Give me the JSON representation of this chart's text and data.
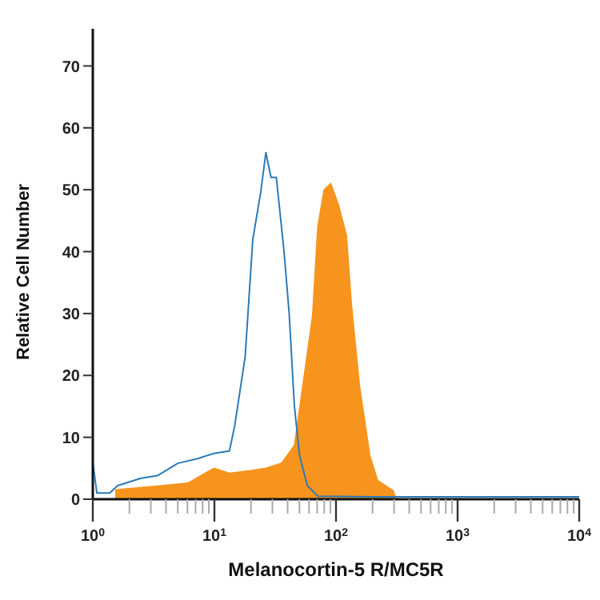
{
  "chart_data": {
    "type": "area",
    "xlabel": "Melanocortin-5 R/MC5R",
    "ylabel": "Relative Cell Number",
    "log": "x",
    "xlim": [
      1,
      10000
    ],
    "ylim": [
      0,
      76
    ],
    "yticks": [
      0,
      10,
      20,
      30,
      40,
      50,
      60,
      70
    ],
    "xticks": [
      {
        "value": 1,
        "label": "10$^{0}$"
      },
      {
        "value": 2,
        "label": null
      },
      {
        "value": 3,
        "label": null
      },
      {
        "value": 4,
        "label": null
      },
      {
        "value": 5,
        "label": null
      },
      {
        "value": 6,
        "label": null
      },
      {
        "value": 7,
        "label": null
      },
      {
        "value": 8,
        "label": null
      },
      {
        "value": 9,
        "label": null
      },
      {
        "value": 10,
        "label": "10$^{1}$"
      },
      {
        "value": 20,
        "label": null
      },
      {
        "value": 30,
        "label": null
      },
      {
        "value": 40,
        "label": null
      },
      {
        "value": 50,
        "label": null
      },
      {
        "value": 60,
        "label": null
      },
      {
        "value": 70,
        "label": null
      },
      {
        "value": 80,
        "label": null
      },
      {
        "value": 90,
        "label": null
      },
      {
        "value": 100,
        "label": "10$^{2}$"
      },
      {
        "value": 200,
        "label": null
      },
      {
        "value": 300,
        "label": null
      },
      {
        "value": 400,
        "label": null
      },
      {
        "value": 500,
        "label": null
      },
      {
        "value": 600,
        "label": null
      },
      {
        "value": 700,
        "label": null
      },
      {
        "value": 800,
        "label": null
      },
      {
        "value": 900,
        "label": null
      },
      {
        "value": 1000,
        "label": "10$^{3}$"
      },
      {
        "value": 2000,
        "label": null
      },
      {
        "value": 3000,
        "label": null
      },
      {
        "value": 4000,
        "label": null
      },
      {
        "value": 5000,
        "label": null
      },
      {
        "value": 6000,
        "label": null
      },
      {
        "value": 7000,
        "label": null
      },
      {
        "value": 8000,
        "label": null
      },
      {
        "value": 9000,
        "label": null
      },
      {
        "value": 10000,
        "label": "10$^{4}$"
      }
    ],
    "series": [
      {
        "color": "#f7941d",
        "x": [
          1.53,
          3.7,
          6.05,
          9.9,
          13.3,
          19.7,
          26.5,
          35.6,
          45.5,
          52.7,
          64.2,
          70.8,
          79.8,
          90.6,
          105,
          122,
          134,
          156,
          190,
          220,
          295,
          310
        ],
        "values": [
          1.5,
          2.2,
          2.6,
          5,
          4.2,
          4.6,
          5,
          5.8,
          8.7,
          17.6,
          29.7,
          44,
          50,
          51,
          47.5,
          42.6,
          31.4,
          18.4,
          7,
          3,
          1.4,
          0
        ]
      },
      {
        "type": "line",
        "color": "#2b7bb9",
        "x": [
          1,
          1.08,
          1.38,
          1.6,
          2.5,
          3.4,
          5.0,
          7.4,
          9.9,
          13.3,
          14.7,
          17.9,
          20.7,
          24,
          26.5,
          29.2,
          32.3,
          37.4,
          41.2,
          45.5,
          50.2,
          58.2,
          70.8,
          190,
          10000
        ],
        "values": [
          6,
          1,
          1,
          2.2,
          3.4,
          3.8,
          5.8,
          6.6,
          7.4,
          7.8,
          11.9,
          23,
          42,
          49.5,
          56,
          52,
          52,
          40,
          30,
          15,
          7,
          2.2,
          0.5,
          0.4,
          0.4
        ]
      }
    ]
  }
}
